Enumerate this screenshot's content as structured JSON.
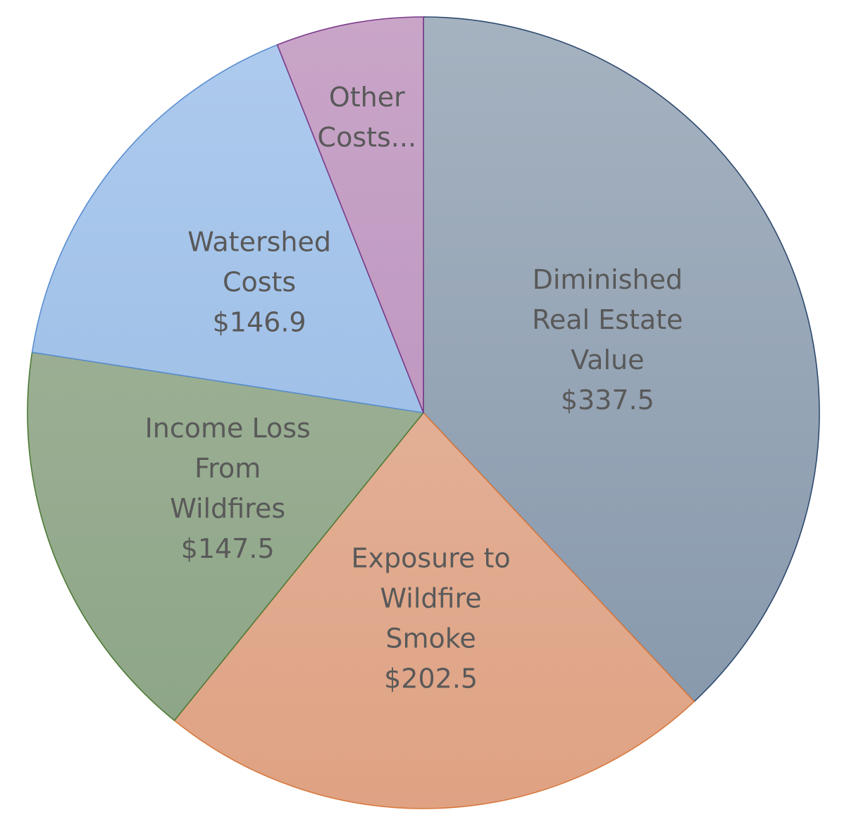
{
  "chart_data": {
    "type": "pie",
    "title": "",
    "slices": [
      {
        "label_lines": [
          "Diminished",
          "Real Estate",
          "Value",
          "$337.5"
        ],
        "value": 337.5,
        "color_top": "#a5b2c0",
        "color_bottom": "#8496aa",
        "stroke": "#2f4a6e"
      },
      {
        "label_lines": [
          "Exposure to",
          "Wildfire",
          "Smoke",
          "$202.5"
        ],
        "value": 202.5,
        "color_top": "#e5bca8",
        "color_bottom": "#dfa283",
        "stroke": "#d8793e"
      },
      {
        "label_lines": [
          "Income Loss",
          "From",
          "Wildfires",
          "$147.5"
        ],
        "value": 147.5,
        "color_top": "#a7b69e",
        "color_bottom": "#8ba485",
        "stroke": "#4e7a35"
      },
      {
        "label_lines": [
          "Watershed",
          "Costs",
          "$146.9"
        ],
        "value": 146.9,
        "color_top": "#aecbee",
        "color_bottom": "#93b6e1",
        "stroke": "#5a8ed0"
      },
      {
        "label_lines": [
          "Other",
          "Costs..."
        ],
        "value": 53.4,
        "color_top": "#c9a5c8",
        "color_bottom": "#b58cb9",
        "stroke": "#7b3a8a"
      }
    ],
    "start_angle_deg": 0,
    "direction": "clockwise",
    "legend": "none"
  }
}
